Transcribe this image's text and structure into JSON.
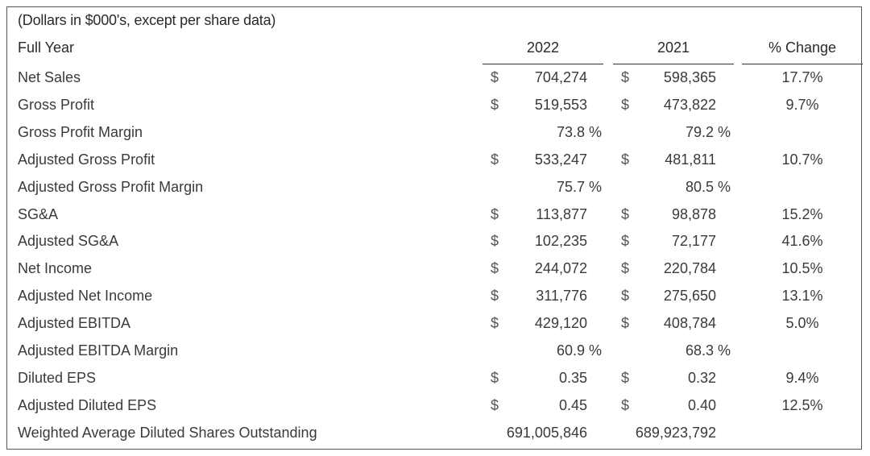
{
  "table": {
    "caption": "(Dollars in $000's, except per share data)",
    "header": {
      "label": "Full Year",
      "col2022": "2022",
      "col2021": "2021",
      "change": "% Change"
    },
    "rows": [
      {
        "label": "Net Sales",
        "d2022": "$",
        "v2022": "704,274",
        "d2021": "$",
        "v2021": "598,365",
        "change": "17.7%"
      },
      {
        "label": "Gross Profit",
        "d2022": "$",
        "v2022": "519,553",
        "d2021": "$",
        "v2021": "473,822",
        "change": "9.7%"
      },
      {
        "label": "Gross Profit Margin",
        "m2022": "73.8 %",
        "m2021": "79.2 %"
      },
      {
        "label": "Adjusted Gross Profit",
        "d2022": "$",
        "v2022": "533,247",
        "d2021": "$",
        "v2021": "481,811",
        "change": "10.7%"
      },
      {
        "label": "Adjusted Gross Profit Margin",
        "m2022": "75.7 %",
        "m2021": "80.5 %"
      },
      {
        "label": "SG&A",
        "d2022": "$",
        "v2022": "113,877",
        "d2021": "$",
        "v2021": "98,878",
        "change": "15.2%"
      },
      {
        "label": "Adjusted SG&A",
        "d2022": "$",
        "v2022": "102,235",
        "d2021": "$",
        "v2021": "72,177",
        "change": "41.6%"
      },
      {
        "label": "Net Income",
        "d2022": "$",
        "v2022": "244,072",
        "d2021": "$",
        "v2021": "220,784",
        "change": "10.5%"
      },
      {
        "label": "Adjusted Net Income",
        "d2022": "$",
        "v2022": "311,776",
        "d2021": "$",
        "v2021": "275,650",
        "change": "13.1%"
      },
      {
        "label": "Adjusted EBITDA",
        "d2022": "$",
        "v2022": "429,120",
        "d2021": "$",
        "v2021": "408,784",
        "change": "5.0%"
      },
      {
        "label": "Adjusted EBITDA Margin",
        "m2022": "60.9 %",
        "m2021": "68.3 %"
      },
      {
        "label": "Diluted EPS",
        "d2022": "$",
        "v2022": "0.35",
        "d2021": "$",
        "v2021": "0.32",
        "change": "9.4%"
      },
      {
        "label": "Adjusted Diluted EPS",
        "d2022": "$",
        "v2022": "0.45",
        "d2021": "$",
        "v2021": "0.40",
        "change": "12.5%"
      },
      {
        "label": "Weighted Average Diluted Shares Outstanding",
        "s2022": "691,005,846",
        "s2021": "689,923,792"
      }
    ]
  }
}
